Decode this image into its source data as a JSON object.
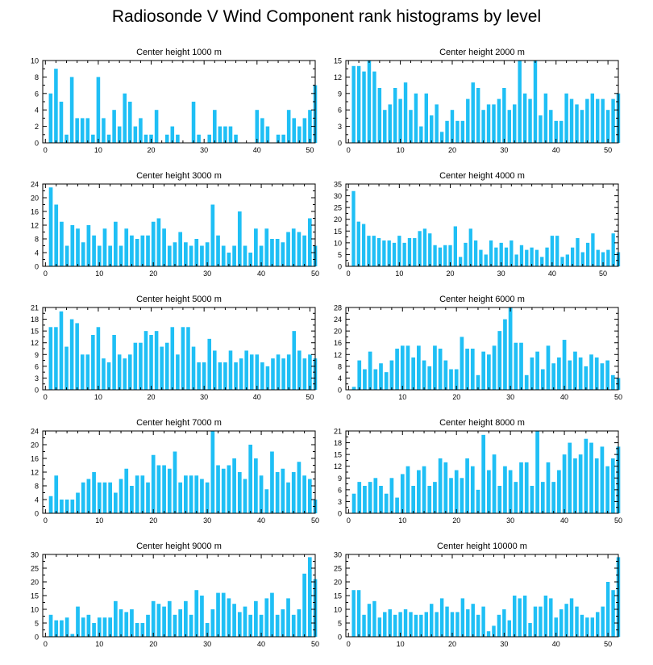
{
  "title": "Radiosonde V Wind Component rank histograms by level",
  "colors": {
    "bar": "#1FBFF5",
    "axis": "#000000",
    "background": "#ffffff"
  },
  "chart_data": [
    {
      "type": "bar",
      "title": "Center height 1000 m",
      "x_ticks": [
        0,
        10,
        20,
        30,
        40,
        50
      ],
      "ylim": [
        0,
        10
      ],
      "y_ticks": [
        0,
        2,
        4,
        6,
        8,
        10
      ],
      "values": [
        6,
        9,
        5,
        1,
        8,
        3,
        3,
        3,
        1,
        8,
        3,
        1,
        4,
        2,
        6,
        5,
        2,
        3,
        1,
        1,
        4,
        0,
        1,
        2,
        1,
        0,
        0,
        5,
        1,
        0,
        1,
        4,
        2,
        2,
        2,
        1,
        0,
        0,
        0,
        4,
        3,
        2,
        0,
        1,
        1,
        4,
        3,
        2,
        3,
        4,
        7
      ]
    },
    {
      "type": "bar",
      "title": "Center height 2000 m",
      "x_ticks": [
        0,
        10,
        20,
        30,
        40,
        50
      ],
      "ylim": [
        0,
        15
      ],
      "y_ticks": [
        0,
        3,
        6,
        9,
        12,
        15
      ],
      "values": [
        14,
        14,
        13,
        15,
        13,
        10,
        6,
        7,
        10,
        8,
        11,
        6,
        9,
        3,
        9,
        5,
        7,
        2,
        4,
        6,
        4,
        4,
        8,
        11,
        10,
        6,
        7,
        7,
        8,
        10,
        6,
        7,
        15,
        9,
        8,
        15,
        5,
        9,
        6,
        4,
        4,
        9,
        8,
        7,
        6,
        8,
        9,
        8,
        8,
        6,
        8,
        9
      ]
    },
    {
      "type": "bar",
      "title": "Center height 3000 m",
      "x_ticks": [
        0,
        10,
        20,
        30,
        40,
        50
      ],
      "ylim": [
        0,
        24
      ],
      "y_ticks": [
        0,
        4,
        8,
        12,
        16,
        20,
        24
      ],
      "values": [
        23,
        18,
        13,
        6,
        12,
        11,
        7,
        12,
        9,
        6,
        11,
        6,
        13,
        6,
        11,
        9,
        8,
        9,
        9,
        13,
        14,
        11,
        6,
        7,
        10,
        7,
        6,
        8,
        6,
        7,
        18,
        9,
        6,
        4,
        6,
        16,
        6,
        4,
        11,
        6,
        11,
        8,
        8,
        7,
        10,
        11,
        10,
        9,
        14,
        6
      ]
    },
    {
      "type": "bar",
      "title": "Center height 4000 m",
      "x_ticks": [
        0,
        10,
        20,
        30,
        40,
        50
      ],
      "ylim": [
        0,
        35
      ],
      "y_ticks": [
        0,
        5,
        10,
        15,
        20,
        25,
        30,
        35
      ],
      "values": [
        32,
        19,
        18,
        13,
        13,
        12,
        11,
        11,
        10,
        13,
        10,
        12,
        12,
        15,
        16,
        14,
        9,
        8,
        9,
        9,
        17,
        4,
        10,
        16,
        11,
        7,
        5,
        11,
        8,
        10,
        8,
        11,
        5,
        9,
        7,
        8,
        7,
        4,
        8,
        13,
        13,
        4,
        5,
        8,
        12,
        6,
        10,
        14,
        7,
        6,
        7,
        14,
        6
      ]
    },
    {
      "type": "bar",
      "title": "Center height 5000 m",
      "x_ticks": [
        0,
        10,
        20,
        30,
        40,
        50
      ],
      "ylim": [
        0,
        21
      ],
      "y_ticks": [
        0,
        3,
        6,
        9,
        12,
        15,
        18,
        21
      ],
      "values": [
        16,
        16,
        20,
        11,
        18,
        17,
        9,
        9,
        14,
        16,
        8,
        7,
        14,
        9,
        8,
        9,
        12,
        12,
        15,
        14,
        15,
        11,
        12,
        16,
        9,
        16,
        16,
        11,
        7,
        7,
        13,
        10,
        7,
        7,
        10,
        7,
        8,
        10,
        9,
        9,
        7,
        6,
        8,
        9,
        8,
        9,
        15,
        10,
        8,
        9,
        8
      ]
    },
    {
      "type": "bar",
      "title": "Center height 6000 m",
      "x_ticks": [
        0,
        10,
        20,
        30,
        40,
        50
      ],
      "ylim": [
        0,
        28
      ],
      "y_ticks": [
        0,
        4,
        8,
        12,
        16,
        20,
        24,
        28
      ],
      "values": [
        1,
        10,
        7,
        13,
        7,
        9,
        6,
        10,
        14,
        15,
        15,
        11,
        15,
        10,
        8,
        15,
        14,
        10,
        7,
        7,
        18,
        14,
        14,
        5,
        13,
        12,
        15,
        20,
        24,
        28,
        16,
        16,
        5,
        11,
        13,
        7,
        15,
        9,
        11,
        17,
        10,
        13,
        11,
        8,
        12,
        11,
        9,
        10,
        5,
        4
      ]
    },
    {
      "type": "bar",
      "title": "Center height 7000 m",
      "x_ticks": [
        0,
        10,
        20,
        30,
        40,
        50
      ],
      "ylim": [
        0,
        24
      ],
      "y_ticks": [
        0,
        4,
        8,
        12,
        16,
        20,
        24
      ],
      "values": [
        5,
        11,
        4,
        4,
        4,
        6,
        9,
        10,
        12,
        9,
        9,
        9,
        6,
        10,
        13,
        8,
        11,
        11,
        9,
        17,
        14,
        14,
        13,
        18,
        9,
        11,
        11,
        11,
        10,
        9,
        24,
        14,
        13,
        14,
        16,
        12,
        10,
        20,
        16,
        11,
        7,
        18,
        12,
        13,
        9,
        12,
        15,
        11,
        10,
        4
      ]
    },
    {
      "type": "bar",
      "title": "Center height 8000 m",
      "x_ticks": [
        0,
        10,
        20,
        30,
        40,
        50
      ],
      "ylim": [
        0,
        21
      ],
      "y_ticks": [
        0,
        3,
        6,
        9,
        12,
        15,
        18,
        21
      ],
      "values": [
        5,
        8,
        7,
        8,
        9,
        7,
        5,
        9,
        4,
        10,
        12,
        7,
        11,
        12,
        7,
        8,
        14,
        13,
        9,
        11,
        9,
        14,
        12,
        6,
        20,
        11,
        15,
        7,
        12,
        11,
        8,
        13,
        13,
        7,
        21,
        8,
        13,
        8,
        11,
        15,
        18,
        14,
        15,
        19,
        18,
        14,
        17,
        12,
        14,
        17
      ]
    },
    {
      "type": "bar",
      "title": "Center height 9000 m",
      "x_ticks": [
        0,
        10,
        20,
        30,
        40,
        50
      ],
      "ylim": [
        0,
        30
      ],
      "y_ticks": [
        0,
        5,
        10,
        15,
        20,
        25,
        30
      ],
      "values": [
        8,
        6,
        6,
        7,
        1,
        11,
        7,
        8,
        5,
        7,
        7,
        7,
        13,
        10,
        9,
        10,
        5,
        5,
        8,
        13,
        12,
        11,
        13,
        8,
        10,
        13,
        8,
        17,
        15,
        5,
        10,
        16,
        16,
        14,
        12,
        9,
        11,
        8,
        13,
        8,
        14,
        16,
        8,
        10,
        14,
        8,
        10,
        23,
        29,
        21
      ]
    },
    {
      "type": "bar",
      "title": "Center height 10000 m",
      "x_ticks": [
        0,
        10,
        20,
        30,
        40,
        50
      ],
      "ylim": [
        0,
        30
      ],
      "y_ticks": [
        0,
        5,
        10,
        15,
        20,
        25,
        30
      ],
      "values": [
        17,
        17,
        8,
        12,
        13,
        7,
        9,
        10,
        8,
        9,
        10,
        9,
        8,
        8,
        9,
        12,
        9,
        14,
        11,
        9,
        9,
        14,
        10,
        12,
        8,
        11,
        2,
        4,
        8,
        10,
        6,
        15,
        14,
        15,
        5,
        11,
        11,
        15,
        14,
        7,
        10,
        12,
        14,
        11,
        8,
        7,
        7,
        9,
        11,
        20,
        17,
        29
      ]
    }
  ]
}
